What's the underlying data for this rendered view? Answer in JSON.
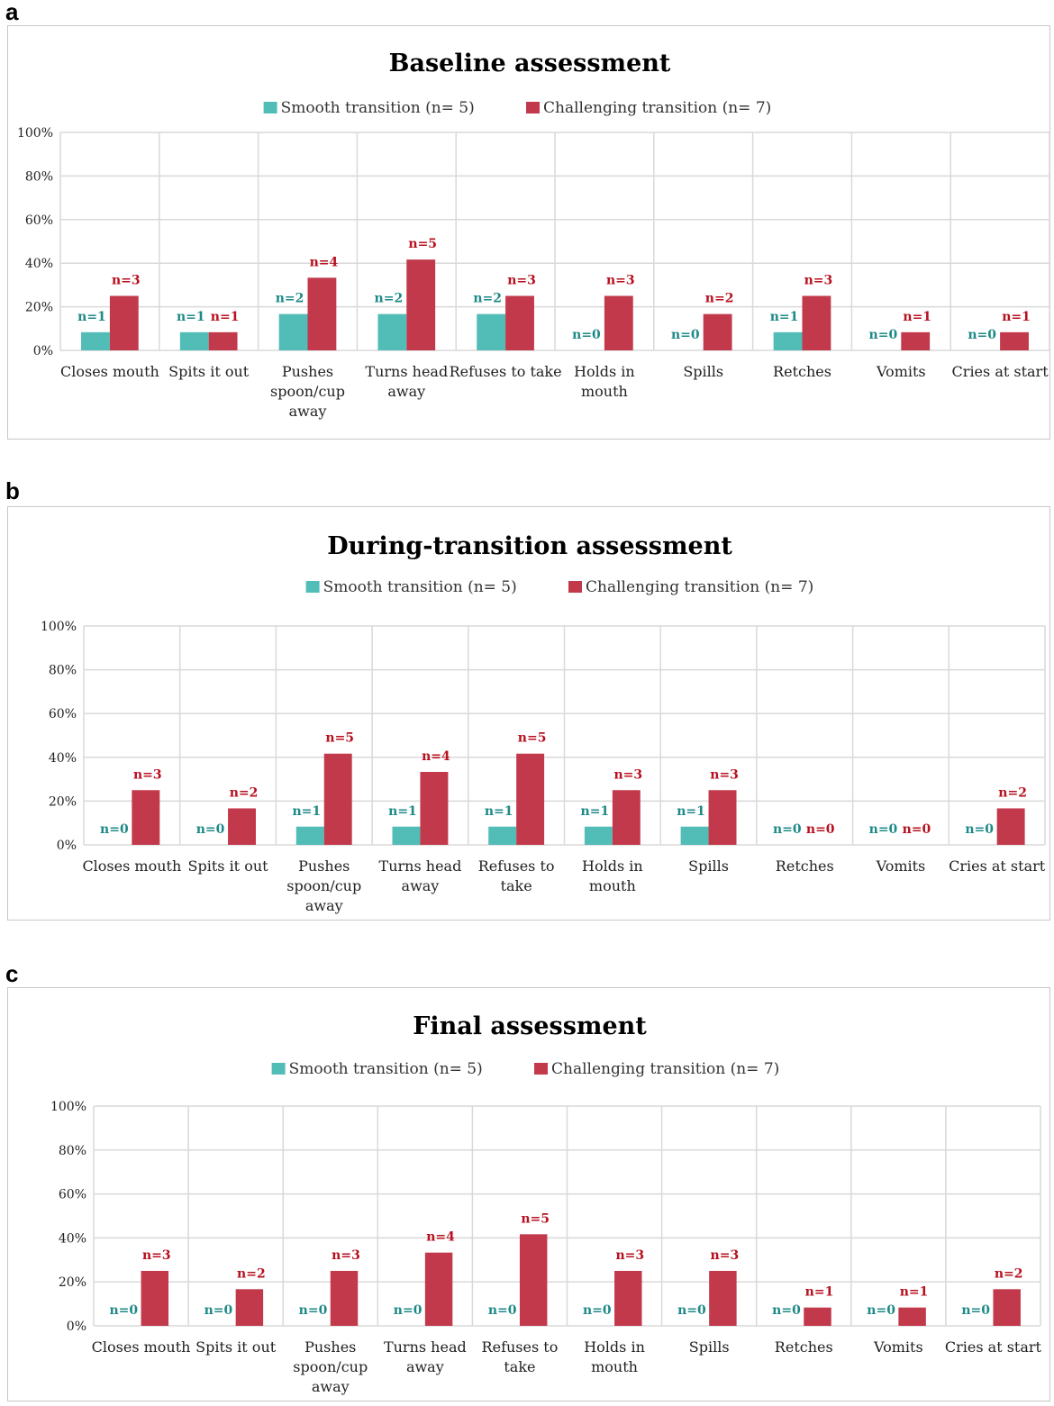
{
  "panels": [
    "a",
    "b",
    "c"
  ],
  "colors": {
    "smooth": "#52bcb7",
    "challenging": "#c2394b",
    "smooth_label": "#1e8a87",
    "challenging_label": "#b8101f",
    "grid": "#d9d9d9"
  },
  "chart_data": [
    {
      "type": "bar",
      "title": "Baseline assessment",
      "categories": [
        [
          "Closes mouth"
        ],
        [
          "Spits it out"
        ],
        [
          "Pushes",
          "spoon/cup",
          "away"
        ],
        [
          "Turns head",
          "away"
        ],
        [
          "Refuses to take"
        ],
        [
          "Holds in",
          "mouth"
        ],
        [
          "Spills"
        ],
        [
          "Retches"
        ],
        [
          "Vomits"
        ],
        [
          "Cries at start"
        ]
      ],
      "yticks": [
        "0%",
        "20%",
        "40%",
        "60%",
        "80%",
        "100%"
      ],
      "ylim": [
        0,
        100
      ],
      "series": [
        {
          "name": "Smooth transition (n= 5)",
          "values": [
            8.33,
            8.33,
            16.67,
            16.67,
            16.67,
            0,
            0,
            8.33,
            0,
            0
          ],
          "labels": [
            "n=1",
            "n=1",
            "n=2",
            "n=2",
            "n=2",
            "n=0",
            "n=0",
            "n=1",
            "n=0",
            "n=0"
          ]
        },
        {
          "name": "Challenging transition (n= 7)",
          "values": [
            25,
            8.33,
            33.33,
            41.67,
            25,
            25,
            16.67,
            25,
            8.33,
            8.33
          ],
          "labels": [
            "n=3",
            "n=1",
            "n=4",
            "n=5",
            "n=3",
            "n=3",
            "n=2",
            "n=3",
            "n=1",
            "n=1"
          ]
        }
      ]
    },
    {
      "type": "bar",
      "title": "During-transition assessment",
      "categories": [
        [
          "Closes mouth"
        ],
        [
          "Spits it out"
        ],
        [
          "Pushes",
          "spoon/cup",
          "away"
        ],
        [
          "Turns head",
          "away"
        ],
        [
          "Refuses to",
          "take"
        ],
        [
          "Holds in",
          "mouth"
        ],
        [
          "Spills"
        ],
        [
          "Retches"
        ],
        [
          "Vomits"
        ],
        [
          "Cries at start"
        ]
      ],
      "yticks": [
        "0%",
        "20%",
        "40%",
        "60%",
        "80%",
        "100%"
      ],
      "ylim": [
        0,
        100
      ],
      "series": [
        {
          "name": "Smooth transition (n= 5)",
          "values": [
            0,
            0,
            8.33,
            8.33,
            8.33,
            8.33,
            8.33,
            0,
            0,
            0
          ],
          "labels": [
            "n=0",
            "n=0",
            "n=1",
            "n=1",
            "n=1",
            "n=1",
            "n=1",
            "n=0",
            "n=0",
            "n=0"
          ]
        },
        {
          "name": "Challenging transition (n= 7)",
          "values": [
            25,
            16.67,
            41.67,
            33.33,
            41.67,
            25,
            25,
            0,
            0,
            16.67
          ],
          "labels": [
            "n=3",
            "n=2",
            "n=5",
            "n=4",
            "n=5",
            "n=3",
            "n=3",
            "n=0",
            "n=0",
            "n=2"
          ]
        }
      ]
    },
    {
      "type": "bar",
      "title": "Final assessment",
      "categories": [
        [
          "Closes mouth"
        ],
        [
          "Spits it out"
        ],
        [
          "Pushes",
          "spoon/cup",
          "away"
        ],
        [
          "Turns head",
          "away"
        ],
        [
          "Refuses to",
          "take"
        ],
        [
          "Holds in",
          "mouth"
        ],
        [
          "Spills"
        ],
        [
          "Retches"
        ],
        [
          "Vomits"
        ],
        [
          "Cries at start"
        ]
      ],
      "yticks": [
        "0%",
        "20%",
        "40%",
        "60%",
        "80%",
        "100%"
      ],
      "ylim": [
        0,
        100
      ],
      "series": [
        {
          "name": "Smooth transition (n= 5)",
          "values": [
            0,
            0,
            0,
            0,
            0,
            0,
            0,
            0,
            0,
            0
          ],
          "labels": [
            "n=0",
            "n=0",
            "n=0",
            "n=0",
            "n=0",
            "n=0",
            "n=0",
            "n=0",
            "n=0",
            "n=0"
          ]
        },
        {
          "name": "Challenging transition (n= 7)",
          "values": [
            25,
            16.67,
            25,
            33.33,
            41.67,
            25,
            25,
            8.33,
            8.33,
            16.67
          ],
          "labels": [
            "n=3",
            "n=2",
            "n=3",
            "n=4",
            "n=5",
            "n=3",
            "n=3",
            "n=1",
            "n=1",
            "n=2"
          ]
        }
      ]
    }
  ]
}
